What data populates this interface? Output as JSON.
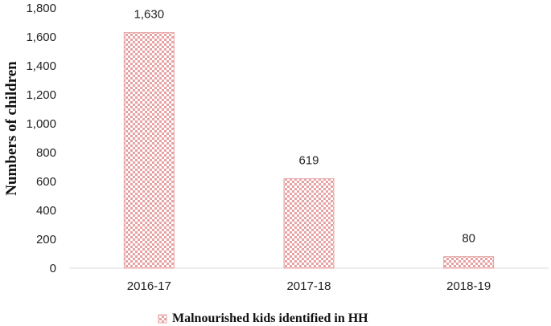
{
  "chart_data": {
    "type": "bar",
    "categories": [
      "2016-17",
      "2017-18",
      "2018-19"
    ],
    "series": [
      {
        "name": "Malnourished kids identified in HH",
        "values": [
          1630,
          619,
          80
        ]
      }
    ],
    "data_labels": [
      "1,630",
      "619",
      "80"
    ],
    "ylabel": "Numbers of children",
    "xlabel": "",
    "ylim": [
      0,
      1800
    ],
    "yticks": [
      0,
      200,
      400,
      600,
      800,
      1000,
      1200,
      1400,
      1600,
      1800
    ],
    "ytick_labels": [
      "0",
      "200",
      "400",
      "600",
      "800",
      "1,000",
      "1,200",
      "1,400",
      "1,600",
      "1,800"
    ],
    "grid": false,
    "legend_position": "bottom",
    "bar_color": "#e7a3a3",
    "bar_pattern": "checkered"
  }
}
